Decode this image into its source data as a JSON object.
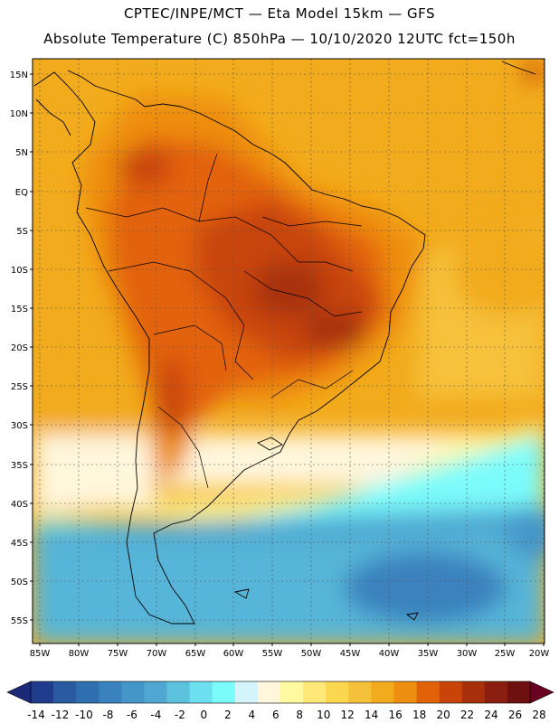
{
  "header": {
    "line1": "CPTEC/INPE/MCT —  Eta Model 15km — GFS",
    "line2": "Absolute Temperature (C) 850hPa — 10/10/2020 12UTC fct=150h"
  },
  "axes": {
    "lat_labels": [
      "15N",
      "10N",
      "5N",
      "EQ",
      "5S",
      "10S",
      "15S",
      "20S",
      "25S",
      "30S",
      "35S",
      "40S",
      "45S",
      "50S",
      "55S"
    ],
    "lon_labels": [
      "85W",
      "80W",
      "75W",
      "70W",
      "65W",
      "60W",
      "55W",
      "50W",
      "45W",
      "40W",
      "35W",
      "30W",
      "25W",
      "20W"
    ]
  },
  "colorbar": {
    "labels": [
      "-14",
      "-12",
      "-10",
      "-8",
      "-6",
      "-4",
      "-2",
      "0",
      "2",
      "4",
      "6",
      "8",
      "10",
      "12",
      "14",
      "16",
      "18",
      "20",
      "22",
      "24",
      "26",
      "28"
    ],
    "colors": [
      "#1f3d8c",
      "#2a5aa0",
      "#2f6fb0",
      "#3a82be",
      "#4596c8",
      "#50a8d2",
      "#5cc2de",
      "#6ce0ee",
      "#7cfbfb",
      "#d4f4fb",
      "#fff6dc",
      "#fffaa0",
      "#fde878",
      "#fbd750",
      "#f6c13a",
      "#f2ab1c",
      "#ee8e10",
      "#e2620a",
      "#c84408",
      "#a8300a",
      "#8a1e10",
      "#6e1010"
    ],
    "left_arrow_color": "#1a2a78",
    "right_arrow_color": "#6a0020"
  }
}
